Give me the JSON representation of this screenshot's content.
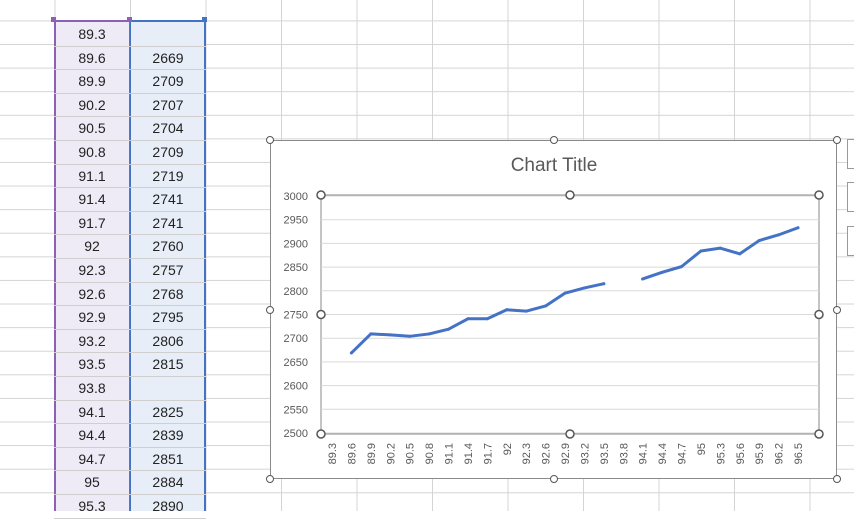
{
  "sheet": {
    "col_a": [
      "89.3",
      "89.6",
      "89.9",
      "90.2",
      "90.5",
      "90.8",
      "91.1",
      "91.4",
      "91.7",
      "92",
      "92.3",
      "92.6",
      "92.9",
      "93.2",
      "93.5",
      "93.8",
      "94.1",
      "94.4",
      "94.7",
      "95",
      "95.3"
    ],
    "col_b": [
      "",
      "2669",
      "2709",
      "2707",
      "2704",
      "2709",
      "2719",
      "2741",
      "2741",
      "2760",
      "2757",
      "2768",
      "2795",
      "2806",
      "2815",
      "",
      "2825",
      "2839",
      "2851",
      "2884",
      "2890"
    ]
  },
  "chart_data": {
    "type": "line",
    "title": "Chart Title",
    "x": [
      "89.3",
      "89.6",
      "89.9",
      "90.2",
      "90.5",
      "90.8",
      "91.1",
      "91.4",
      "91.7",
      "92",
      "92.3",
      "92.6",
      "92.9",
      "93.2",
      "93.5",
      "93.8",
      "94.1",
      "94.4",
      "94.7",
      "95",
      "95.3",
      "95.6",
      "95.9",
      "96.2",
      "96.5"
    ],
    "series": [
      {
        "values": [
          null,
          2669,
          2709,
          2707,
          2704,
          2709,
          2719,
          2741,
          2741,
          2760,
          2757,
          2768,
          2795,
          2806,
          2815,
          null,
          2825,
          2839,
          2851,
          2884,
          2890,
          2878,
          2906,
          2918,
          2933
        ]
      }
    ],
    "ylim": [
      2500,
      3000
    ],
    "yticks": [
      "2500",
      "2550",
      "2600",
      "2650",
      "2700",
      "2750",
      "2800",
      "2850",
      "2900",
      "2950",
      "3000"
    ],
    "grid": true,
    "line_color": "#4472c4"
  }
}
